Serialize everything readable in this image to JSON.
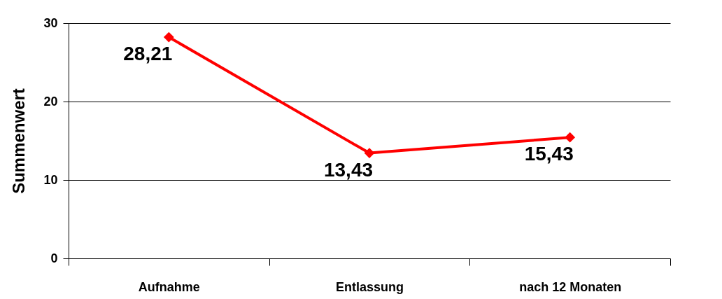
{
  "chart_data": {
    "type": "line",
    "ylabel": "Summenwert",
    "categories": [
      "Aufnahme",
      "Entlassung",
      "nach 12 Monaten"
    ],
    "series": [
      {
        "color": "#ff0000",
        "values": [
          28.21,
          13.43,
          15.43
        ],
        "value_labels": [
          "28,21",
          "13,43",
          "15,43"
        ]
      }
    ],
    "ylim": [
      0,
      30
    ],
    "yticks": [
      0,
      10,
      20,
      30
    ],
    "grid": "y",
    "marker": "diamond"
  }
}
